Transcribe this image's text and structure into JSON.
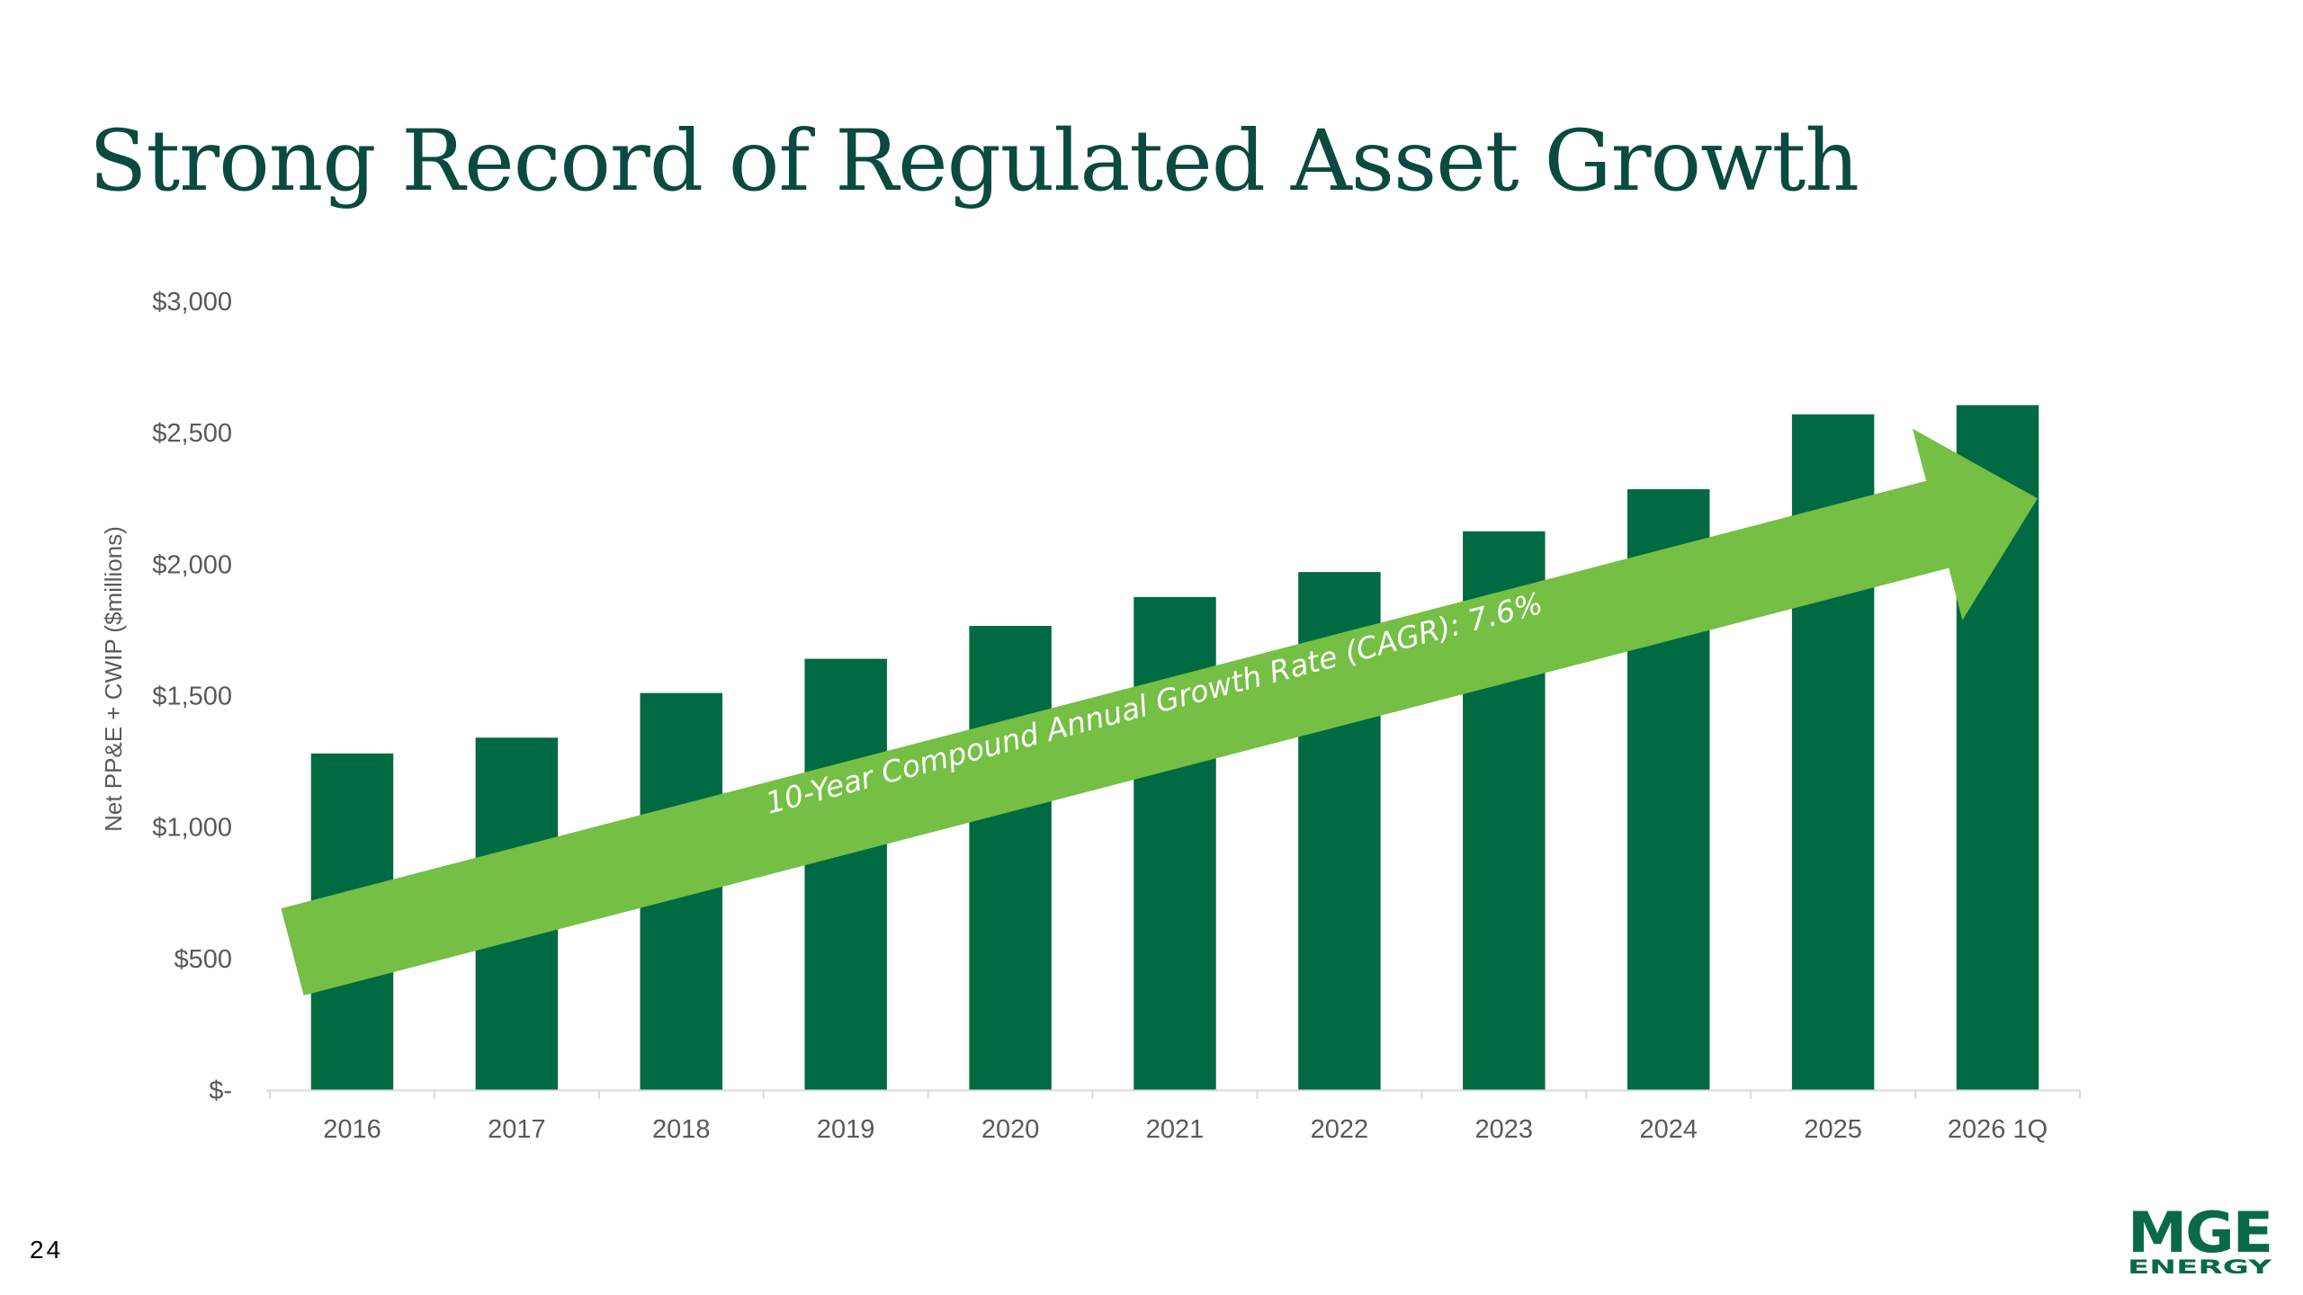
{
  "slide": {
    "title": "Strong Record of Regulated Asset Growth",
    "page_number": "24",
    "logo": {
      "name": "mge-energy-logo",
      "text_main": "MGE",
      "text_sub": "ENERGY",
      "color": "#0a6a47"
    }
  },
  "colors": {
    "bar": "#006a43",
    "arrow": "#74bf44",
    "axis_text": "#595959",
    "axis_line": "#d9d9d9"
  },
  "chart_data": {
    "type": "bar",
    "title": "",
    "xlabel": "",
    "ylabel": "Net PP&E + CWIP ($millions)",
    "categories": [
      "2016",
      "2017",
      "2018",
      "2019",
      "2020",
      "2021",
      "2022",
      "2023",
      "2024",
      "2025",
      "2026 1Q"
    ],
    "values": [
      1280,
      1340,
      1510,
      1640,
      1765,
      1875,
      1970,
      2125,
      2285,
      2570,
      2605
    ],
    "ylim": [
      0,
      3000
    ],
    "ytick_values": [
      0,
      500,
      1000,
      1500,
      2000,
      2500,
      3000
    ],
    "ytick_labels": [
      "$-",
      "$500",
      "$1,000",
      "$1,500",
      "$2,000",
      "$2,500",
      "$3,000"
    ],
    "grid": false,
    "legend": "none",
    "annotation": {
      "text": "10-Year Compound Annual Growth Rate (CAGR): 7.6%",
      "start_value": 525,
      "end_value": 2250
    }
  }
}
